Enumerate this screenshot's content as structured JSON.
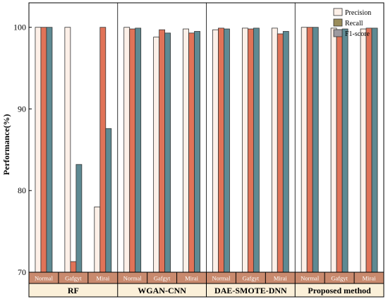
{
  "chart_data": {
    "type": "bar",
    "ylabel": "Performance(%)",
    "ylim": [
      70,
      103
    ],
    "yticks": [
      70,
      80,
      90,
      100
    ],
    "grid": false,
    "legend_position": "top-right",
    "groups": [
      {
        "label": "RF",
        "categories": [
          "Normal",
          "Gafgyt",
          "Mirai"
        ]
      },
      {
        "label": "WGAN-CNN",
        "categories": [
          "Normal",
          "Gafgyt",
          "Mirai"
        ]
      },
      {
        "label": "DAE-SMOTE-DNN",
        "categories": [
          "Normal",
          "Gafgyt",
          "Mirai"
        ]
      },
      {
        "label": "Proposed method",
        "categories": [
          "Normal",
          "Gafgyt",
          "Mirai"
        ]
      }
    ],
    "series": [
      {
        "name": "Precision",
        "color": "#fdf0e8",
        "values": [
          100.0,
          100.0,
          78.0,
          100.0,
          98.8,
          99.8,
          99.7,
          99.9,
          99.9,
          100.0,
          99.9,
          99.8
        ]
      },
      {
        "name": "Recall",
        "color": "#e07358",
        "values": [
          100.0,
          71.3,
          100.0,
          99.8,
          99.7,
          99.3,
          99.9,
          99.8,
          99.2,
          100.0,
          99.7,
          99.9
        ]
      },
      {
        "name": "F1-score",
        "color": "#5e8a93",
        "values": [
          100.0,
          83.2,
          87.6,
          99.9,
          99.3,
          99.5,
          99.8,
          99.9,
          99.5,
          100.0,
          99.8,
          99.9
        ]
      }
    ],
    "legend_swatch_colors": [
      "#fdf0e8",
      "#9a8c5a",
      "#9d9aa0"
    ],
    "category_band_color": "#c98a6e",
    "group_band_color": "#fbf0d9"
  }
}
